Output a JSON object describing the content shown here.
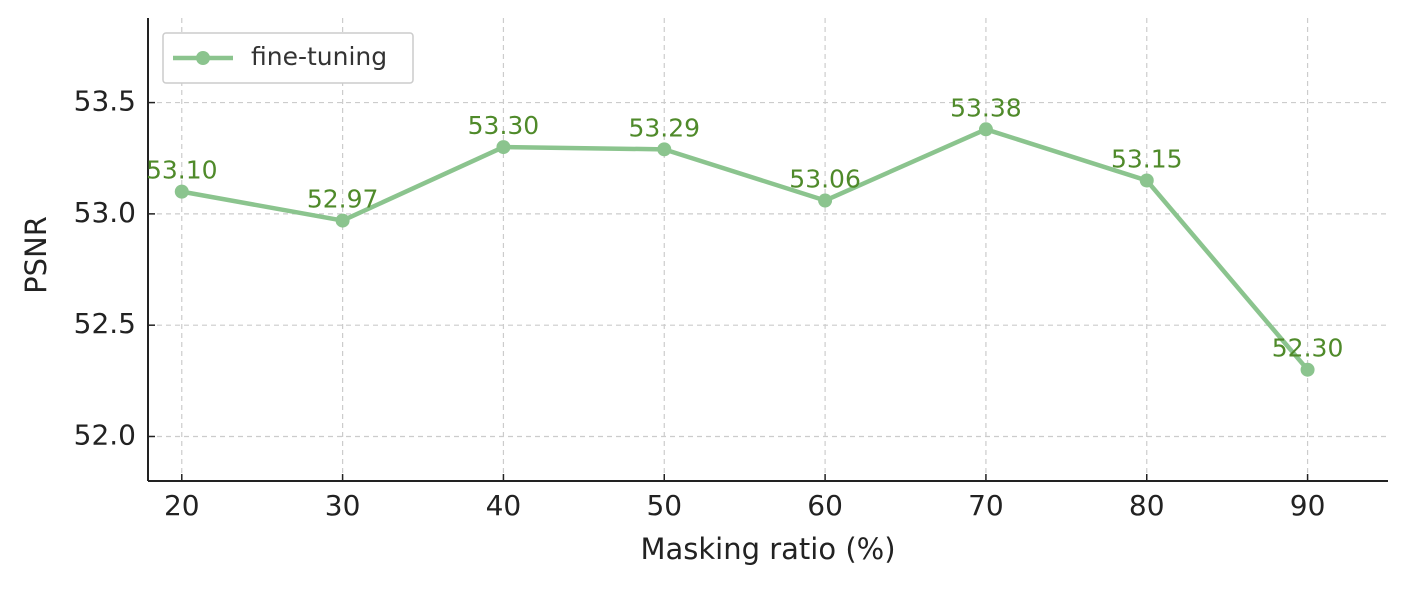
{
  "chart_data": {
    "type": "line",
    "x": [
      20,
      30,
      40,
      50,
      60,
      70,
      80,
      90
    ],
    "series": [
      {
        "name": "fine-tuning",
        "color": "#8bc48e",
        "values": [
          53.1,
          52.97,
          53.3,
          53.29,
          53.06,
          53.38,
          53.15,
          52.3
        ],
        "value_labels": [
          "53.10",
          "52.97",
          "53.30",
          "53.29",
          "53.06",
          "53.38",
          "53.15",
          "52.30"
        ],
        "label_color": "#4f8a2a"
      }
    ],
    "xlabel": "Masking ratio (%)",
    "ylabel": "PSNR",
    "xlim": [
      17.9,
      95
    ],
    "ylim": [
      51.8,
      53.88
    ],
    "xticks": [
      20,
      30,
      40,
      50,
      60,
      70,
      80,
      90
    ],
    "yticks": [
      {
        "value": 52,
        "label": "52.0"
      },
      52.5,
      {
        "value": 53,
        "label": "53.0"
      },
      53.5
    ],
    "grid": true,
    "legend": "upper-left"
  }
}
